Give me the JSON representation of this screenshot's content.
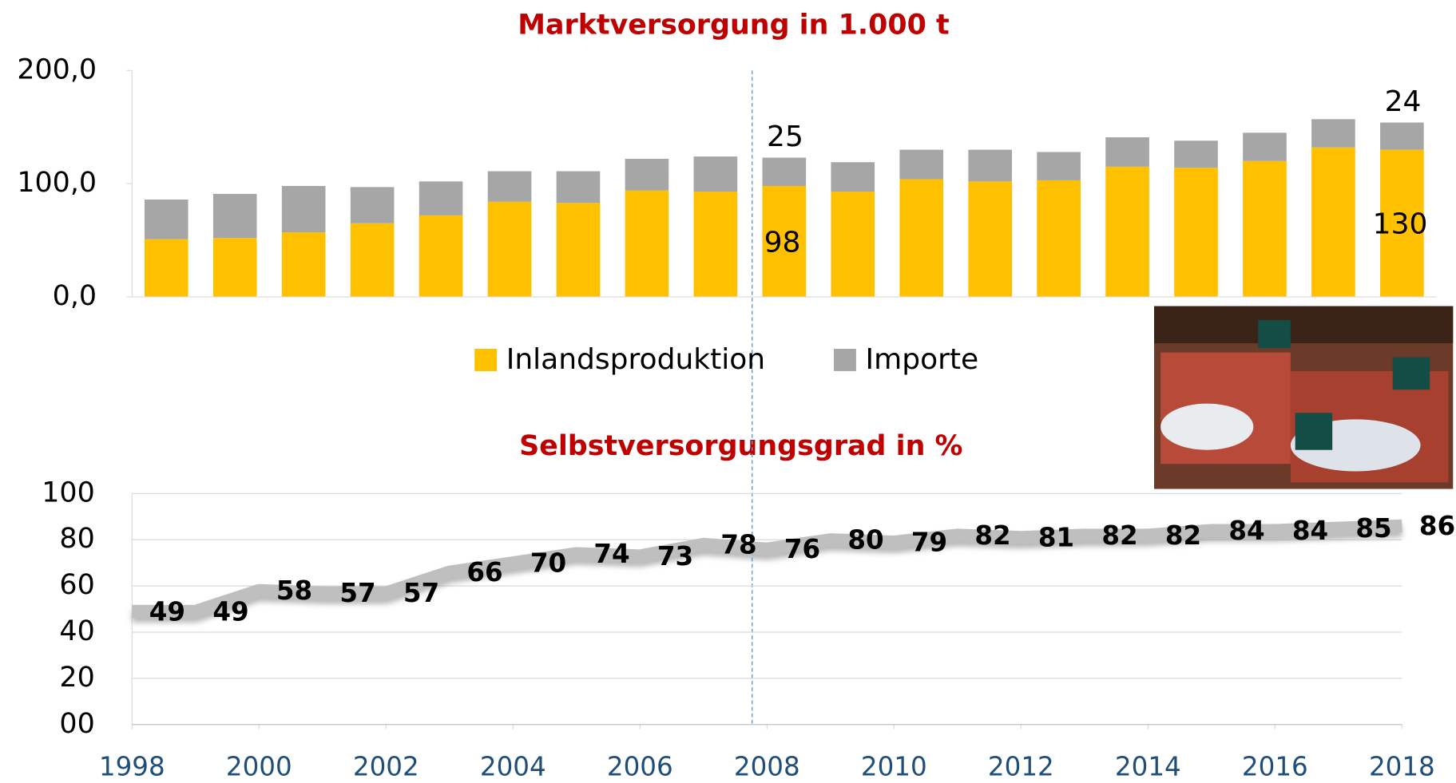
{
  "chart_data": [
    {
      "type": "stacked-bar",
      "title": "Marktversorgung in 1.000 t",
      "categories": [
        null,
        null,
        null,
        null,
        null,
        null,
        null,
        null,
        null,
        null,
        null,
        null,
        null,
        null,
        null,
        null,
        null,
        null,
        null
      ],
      "series": [
        {
          "name": "Inlandsproduktion",
          "color": "#ffc000",
          "values": [
            51,
            52,
            57,
            65,
            72,
            84,
            83,
            94,
            93,
            98,
            93,
            104,
            102,
            103,
            115,
            114,
            120,
            132,
            130
          ]
        },
        {
          "name": "Importe",
          "color": "#a6a6a6",
          "values": [
            35,
            39,
            41,
            32,
            30,
            27,
            28,
            28,
            31,
            25,
            26,
            26,
            28,
            25,
            26,
            24,
            25,
            25,
            24
          ]
        }
      ],
      "ylim": [
        0,
        200
      ],
      "yticks": [
        {
          "value": 0,
          "label": "0,0"
        },
        {
          "value": 100,
          "label": "100,0"
        },
        {
          "value": 200,
          "label": "200,0"
        }
      ],
      "labeled_points": [
        [
          0,
          9
        ],
        [
          1,
          9
        ],
        [
          0,
          18
        ],
        [
          1,
          18
        ]
      ],
      "legend": "bottom"
    },
    {
      "type": "line",
      "title": "Selbstversorgungsgrad in %",
      "x": [
        1998,
        1999,
        2000,
        2001,
        2002,
        2003,
        2004,
        2005,
        2006,
        2007,
        2008,
        2009,
        2010,
        2011,
        2012,
        2013,
        2014,
        2015,
        2016,
        2017,
        2018
      ],
      "values": [
        49,
        49,
        58,
        57,
        57,
        66,
        70,
        74,
        73,
        78,
        76,
        80,
        79,
        82,
        81,
        82,
        82,
        84,
        84,
        85,
        86
      ],
      "color": "#bfbfbf",
      "xlim": [
        1998,
        2018
      ],
      "xticks": [
        1998,
        2000,
        2002,
        2004,
        2006,
        2008,
        2010,
        2012,
        2014,
        2016,
        2018
      ],
      "ylim": [
        0,
        100
      ],
      "yticks": [
        {
          "value": 0,
          "label": "00"
        },
        20,
        40,
        60,
        80,
        100
      ],
      "grid": true
    }
  ]
}
